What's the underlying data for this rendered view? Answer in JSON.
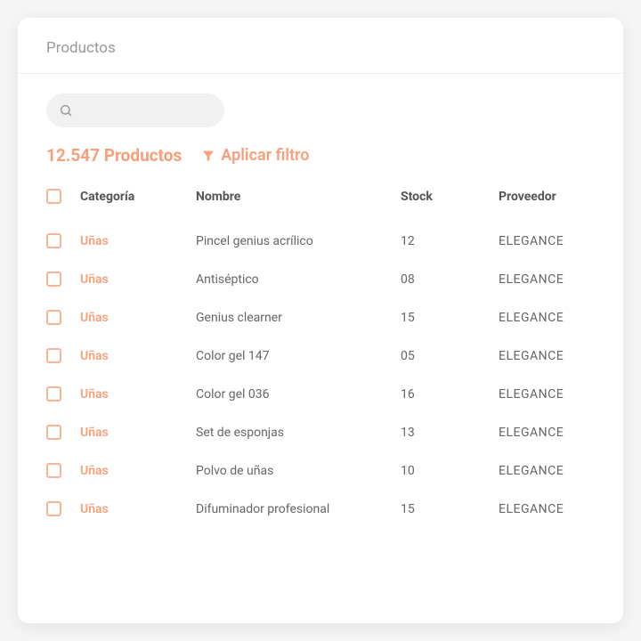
{
  "header": {
    "title": "Productos"
  },
  "search": {
    "placeholder": ""
  },
  "summary": {
    "count_text": "12.547 Productos",
    "filter_label": "Aplicar filtro"
  },
  "columns": {
    "categoria": "Categoría",
    "nombre": "Nombre",
    "stock": "Stock",
    "proveedor": "Proveedor"
  },
  "rows": [
    {
      "categoria": "Uñas",
      "nombre": "Pincel genius acrílico",
      "stock": "12",
      "proveedor": "ELEGANCE"
    },
    {
      "categoria": "Uñas",
      "nombre": "Antiséptico",
      "stock": "08",
      "proveedor": "ELEGANCE"
    },
    {
      "categoria": "Uñas",
      "nombre": "Genius clearner",
      "stock": "15",
      "proveedor": "ELEGANCE"
    },
    {
      "categoria": "Uñas",
      "nombre": "Color gel 147",
      "stock": "05",
      "proveedor": "ELEGANCE"
    },
    {
      "categoria": "Uñas",
      "nombre": "Color gel 036",
      "stock": "16",
      "proveedor": "ELEGANCE"
    },
    {
      "categoria": "Uñas",
      "nombre": "Set de esponjas",
      "stock": "13",
      "proveedor": "ELEGANCE"
    },
    {
      "categoria": "Uñas",
      "nombre": "Polvo de uñas",
      "stock": "10",
      "proveedor": "ELEGANCE"
    },
    {
      "categoria": "Uñas",
      "nombre": "Difuminador profesional",
      "stock": "15",
      "proveedor": "ELEGANCE"
    }
  ],
  "colors": {
    "accent": "#f5a07a",
    "checkbox_border": "#f5b596",
    "text_muted": "#999999",
    "text_body": "#666666",
    "border": "#eeeeee",
    "search_bg": "#f1f1f1",
    "card_bg": "#ffffff"
  }
}
